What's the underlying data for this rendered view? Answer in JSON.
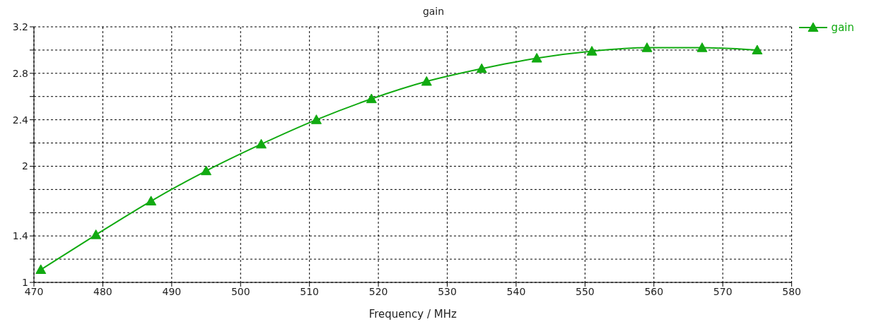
{
  "chart_data": {
    "type": "line",
    "title": "gain",
    "xlabel": "Frequency / MHz",
    "x": [
      471,
      479,
      487,
      495,
      503,
      511,
      519,
      527,
      535,
      543,
      551,
      559,
      567,
      575
    ],
    "series": [
      {
        "name": "gain",
        "color": "#11aa11",
        "values": [
          1.11,
          1.41,
          1.7,
          1.96,
          2.19,
          2.4,
          2.58,
          2.73,
          2.84,
          2.93,
          2.99,
          3.02,
          3.02,
          3.0
        ]
      }
    ],
    "xlim": [
      470,
      580
    ],
    "xticks": [
      470,
      480,
      490,
      500,
      510,
      520,
      530,
      540,
      550,
      560,
      570,
      580
    ],
    "ylim": [
      1,
      3.2
    ],
    "yticks": [
      1,
      {
        "value": 1.2,
        "label": null
      },
      1.4,
      {
        "value": 1.6,
        "label": null
      },
      {
        "value": 1.8,
        "label": null
      },
      2,
      {
        "value": 2.2,
        "label": null
      },
      2.4,
      {
        "value": 2.6,
        "label": null
      },
      2.8,
      {
        "value": 3.0,
        "label": null
      },
      3.2
    ],
    "grid": true,
    "legend": "top right",
    "marker": "triangle",
    "line_style": "solid"
  }
}
